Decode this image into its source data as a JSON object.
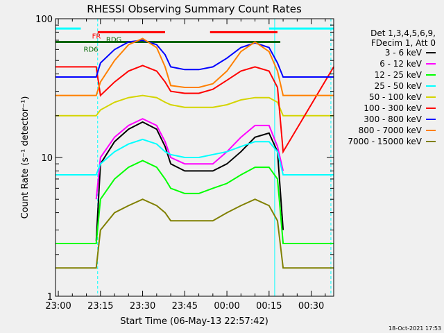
{
  "chart_data": {
    "type": "line",
    "title": "RHESSI Observing Summary Count Rates",
    "xlabel": "Start Time (06-May-13 22:57:42)",
    "ylabel": "Count Rate (s⁻¹ detector⁻¹)",
    "yscale": "log",
    "ylim": [
      1,
      100
    ],
    "xlim_minutes": [
      -1,
      98
    ],
    "x_tick_labels": [
      {
        "label": "23:00",
        "minute": 0
      },
      {
        "label": "23:15",
        "minute": 15
      },
      {
        "label": "23:30",
        "minute": 30
      },
      {
        "label": "23:45",
        "minute": 45
      },
      {
        "label": "00:00",
        "minute": 60
      },
      {
        "label": "00:15",
        "minute": 75
      },
      {
        "label": "00:30",
        "minute": 90
      }
    ],
    "y_tick_labels": [
      {
        "label": "1",
        "value": 1
      },
      {
        "label": "10",
        "value": 10
      },
      {
        "label": "100",
        "value": 100
      }
    ],
    "legend_title": [
      "Det 1,3,4,5,6,9,",
      "FDecim 1, Att 0"
    ],
    "legend_position": "right",
    "series": [
      {
        "name": "3 - 6 keV",
        "color": "#000000",
        "x": [
          13.5,
          15,
          20,
          25,
          30,
          35,
          38,
          40,
          45,
          50,
          55,
          60,
          65,
          70,
          75,
          78,
          80
        ],
        "y": [
          2.5,
          9,
          13,
          16,
          18,
          16,
          12,
          9,
          8,
          8,
          8,
          9,
          11,
          14,
          15,
          11,
          3
        ]
      },
      {
        "name": "6 - 12 keV",
        "color": "#ff00ff",
        "x": [
          13.5,
          15,
          20,
          25,
          30,
          35,
          38,
          40,
          45,
          50,
          55,
          60,
          65,
          70,
          75,
          78,
          80
        ],
        "y": [
          5,
          10,
          14,
          17,
          19,
          17,
          13,
          10,
          9,
          9,
          9,
          11,
          14,
          17,
          17,
          12,
          8
        ]
      },
      {
        "name": "12 - 25 keV",
        "color": "#00ff00",
        "x": [
          -1,
          13.5,
          15,
          20,
          25,
          30,
          35,
          38,
          40,
          45,
          50,
          55,
          60,
          65,
          70,
          75,
          78,
          80,
          98
        ],
        "y": [
          2.4,
          2.4,
          5,
          7,
          8.5,
          9.5,
          8.5,
          7,
          6,
          5.5,
          5.5,
          6,
          6.5,
          7.5,
          8.5,
          8.5,
          7,
          2.4,
          2.4
        ]
      },
      {
        "name": "25 - 50 keV",
        "color": "#00ffff",
        "x": [
          -1,
          13.5,
          15,
          20,
          25,
          30,
          35,
          38,
          40,
          45,
          50,
          55,
          60,
          65,
          70,
          75,
          78,
          80,
          98
        ],
        "y": [
          7.5,
          7.5,
          9,
          11,
          12.5,
          13.5,
          12.5,
          11,
          10.5,
          10,
          10,
          10.5,
          11,
          12,
          13,
          13,
          11,
          7.5,
          7.5
        ]
      },
      {
        "name": "50 - 100 keV",
        "color": "#d4d400",
        "x": [
          -1,
          13.5,
          15,
          20,
          25,
          30,
          35,
          38,
          40,
          45,
          50,
          55,
          60,
          65,
          70,
          75,
          78,
          80,
          98
        ],
        "y": [
          20,
          20,
          22,
          25,
          27,
          28,
          27,
          25,
          24,
          23,
          23,
          23,
          24,
          26,
          27,
          27,
          25,
          20,
          20
        ]
      },
      {
        "name": "100 - 300 keV",
        "color": "#ff0000",
        "x": [
          -1,
          13.5,
          15,
          20,
          25,
          30,
          35,
          38,
          40,
          45,
          50,
          55,
          60,
          65,
          70,
          75,
          78,
          80,
          98
        ],
        "y": [
          45,
          45,
          28,
          35,
          42,
          46,
          42,
          35,
          30,
          29,
          29,
          31,
          36,
          42,
          45,
          42,
          32,
          11,
          45
        ]
      },
      {
        "name": "300 - 800 keV",
        "color": "#0000ff",
        "x": [
          -1,
          13.5,
          15,
          20,
          25,
          30,
          35,
          38,
          40,
          45,
          50,
          55,
          60,
          65,
          70,
          75,
          78,
          80,
          98
        ],
        "y": [
          38,
          38,
          48,
          60,
          68,
          70,
          65,
          55,
          45,
          43,
          43,
          45,
          52,
          62,
          67,
          62,
          48,
          38,
          38
        ]
      },
      {
        "name": "800 - 7000 keV",
        "color": "#ff8000",
        "x": [
          -1,
          13.5,
          15,
          20,
          25,
          30,
          35,
          38,
          40,
          45,
          50,
          55,
          60,
          65,
          70,
          75,
          78,
          80,
          98
        ],
        "y": [
          28,
          28,
          35,
          50,
          65,
          72,
          62,
          45,
          33,
          32,
          32,
          34,
          42,
          58,
          68,
          58,
          42,
          28,
          28
        ]
      },
      {
        "name": "7000 - 15000 keV",
        "color": "#808000",
        "x": [
          -1,
          13.5,
          15,
          20,
          25,
          30,
          35,
          38,
          40,
          45,
          50,
          55,
          60,
          65,
          70,
          75,
          78,
          80,
          98
        ],
        "y": [
          1.6,
          1.6,
          3,
          4,
          4.5,
          5,
          4.5,
          4,
          3.5,
          3.5,
          3.5,
          3.5,
          4,
          4.5,
          5,
          4.5,
          3.5,
          1.6,
          1.6
        ]
      }
    ],
    "annotations": [
      {
        "text": "FR",
        "color": "#ff0000",
        "x": 12,
        "y": 72
      },
      {
        "text": "RDG",
        "color": "#006600",
        "x": 17,
        "y": 68
      },
      {
        "text": "RD6",
        "color": "#006600",
        "x": 9,
        "y": 58
      }
    ],
    "flag_bars": [
      {
        "color": "#00ffff",
        "segments": [
          [
            -1,
            8
          ],
          [
            75,
            98
          ]
        ],
        "value": 85
      },
      {
        "color": "#ff0000",
        "segments": [
          [
            14,
            38
          ],
          [
            54,
            78
          ]
        ],
        "value": 80
      },
      {
        "color": "#006600",
        "segments": [
          [
            -1,
            79
          ]
        ],
        "value": 68
      }
    ],
    "vertical_lines": [
      {
        "color": "#00ffff",
        "minute": -1,
        "style": "solid"
      },
      {
        "color": "#00ffff",
        "minute": 14,
        "style": "dashed"
      },
      {
        "color": "#00ffff",
        "minute": 77,
        "style": "solid"
      },
      {
        "color": "#00ffff",
        "minute": 97,
        "style": "dashed"
      }
    ],
    "grid": false
  },
  "footer": {
    "date": "18-Oct-2021 17:53"
  },
  "colors": {
    "background": "#f0f0f0",
    "axes": "#000000"
  }
}
